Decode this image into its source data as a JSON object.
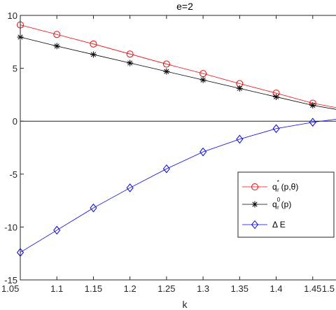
{
  "chart_data": {
    "type": "line",
    "title": "e=2",
    "xlabel": "k",
    "ylabel": "",
    "xlim": [
      1.05,
      1.5
    ],
    "ylim": [
      -15,
      10
    ],
    "xticks": [
      1.05,
      1.1,
      1.15,
      1.2,
      1.25,
      1.3,
      1.35,
      1.4,
      1.45,
      1.5
    ],
    "xtick_labels": [
      "1.05",
      "1.1",
      "1.15",
      "1.2",
      "1.25",
      "1.3",
      "1.35",
      "1.4",
      "1.45",
      "1.5"
    ],
    "yticks": [
      -15,
      -10,
      -5,
      0,
      5,
      10
    ],
    "ytick_labels": [
      "-15",
      "-10",
      "-5",
      "0",
      "5",
      "10"
    ],
    "grid": false,
    "legend_position": "lower-right",
    "x": [
      1.05,
      1.1,
      1.15,
      1.2,
      1.25,
      1.3,
      1.35,
      1.4,
      1.45,
      1.5
    ],
    "series": [
      {
        "legend": {
          "base": "q",
          "sub": "r",
          "sup": "*",
          "args": "(p,θ)"
        },
        "color": "#ff0000",
        "marker": "circle",
        "values": [
          9.1,
          8.2,
          7.3,
          6.35,
          5.4,
          4.5,
          3.55,
          2.65,
          1.7,
          1.05
        ]
      },
      {
        "legend": {
          "base": "q",
          "sub": "r",
          "sup": "0",
          "args": "(p)"
        },
        "color": "#000000",
        "marker": "asterisk",
        "values": [
          7.95,
          7.1,
          6.3,
          5.5,
          4.7,
          3.9,
          3.1,
          2.3,
          1.5,
          0.9
        ]
      },
      {
        "legend": {
          "base": "Δ E",
          "sub": "",
          "sup": "",
          "args": ""
        },
        "color": "#0000ff",
        "marker": "diamond",
        "values": [
          -12.4,
          -10.3,
          -8.2,
          -6.3,
          -4.5,
          -2.9,
          -1.7,
          -0.7,
          -0.1,
          0.35
        ]
      }
    ],
    "reference_line": {
      "y": 0,
      "color": "#000000"
    }
  }
}
